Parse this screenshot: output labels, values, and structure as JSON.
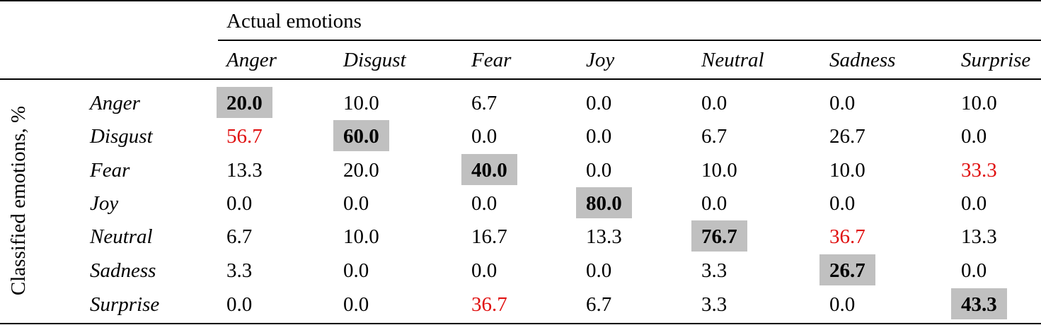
{
  "table": {
    "col_group_header": "Actual emotions",
    "row_group_header": "Classified emotions, %",
    "columns": [
      "Anger",
      "Disgust",
      "Fear",
      "Joy",
      "Neutral",
      "Sadness",
      "Surprise"
    ],
    "rows": [
      {
        "label": "Anger",
        "values": [
          "20.0",
          "10.0",
          "6.7",
          "0.0",
          "0.0",
          "0.0",
          "10.0"
        ]
      },
      {
        "label": "Disgust",
        "values": [
          "56.7",
          "60.0",
          "0.0",
          "0.0",
          "6.7",
          "26.7",
          "0.0"
        ]
      },
      {
        "label": "Fear",
        "values": [
          "13.3",
          "20.0",
          "40.0",
          "0.0",
          "10.0",
          "10.0",
          "33.3"
        ]
      },
      {
        "label": "Joy",
        "values": [
          "0.0",
          "0.0",
          "0.0",
          "80.0",
          "0.0",
          "0.0",
          "0.0"
        ]
      },
      {
        "label": "Neutral",
        "values": [
          "6.7",
          "10.0",
          "16.7",
          "13.3",
          "76.7",
          "36.7",
          "13.3"
        ]
      },
      {
        "label": "Sadness",
        "values": [
          "3.3",
          "0.0",
          "0.0",
          "0.0",
          "3.3",
          "26.7",
          "0.0"
        ]
      },
      {
        "label": "Surprise",
        "values": [
          "0.0",
          "0.0",
          "36.7",
          "6.7",
          "3.3",
          "0.0",
          "43.3"
        ]
      }
    ],
    "highlight_colors": {
      "diagonal_bg": "#c0c0c0",
      "misclassification_text": "#e01010"
    },
    "misclassified_cells": [
      [
        1,
        0
      ],
      [
        2,
        6
      ],
      [
        4,
        5
      ],
      [
        6,
        2
      ]
    ]
  }
}
